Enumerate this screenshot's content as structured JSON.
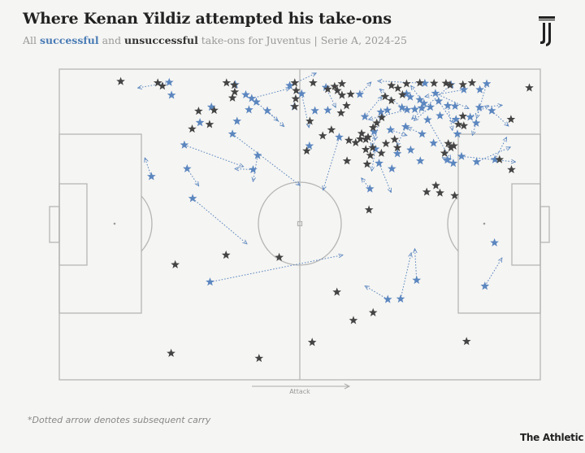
{
  "header": {
    "title": "Where Kenan Yildiz attempted his take-ons",
    "subtitle_prefix": "All ",
    "subtitle_successful": "successful",
    "subtitle_and": " and ",
    "subtitle_unsuccessful": "unsuccessful",
    "subtitle_suffix": " take-ons for Juventus | Serie A, 2024-25"
  },
  "footer": {
    "footnote": "*Dotted arrow denotes subsequent carry",
    "brand": "The Athletic"
  },
  "logo_icon": "juventus-logo-icon",
  "colors": {
    "successful": "#5b86bf",
    "unsuccessful": "#444444",
    "pitch_line": "#b5b5b5",
    "background": "#f5f5f3"
  },
  "chart_data": {
    "type": "scatter",
    "xlabel": "Attack",
    "xlim": [
      0,
      105
    ],
    "ylim": [
      0,
      68
    ],
    "series": [
      {
        "name": "successful",
        "points": [
          {
            "x": 24.0,
            "y": 2.9,
            "cx": 17.2,
            "cy": 4.1
          },
          {
            "x": 24.5,
            "y": 5.7
          },
          {
            "x": 38.4,
            "y": 3.4
          },
          {
            "x": 50.3,
            "y": 3.6,
            "cx": 56.0,
            "cy": 0.9
          },
          {
            "x": 52.9,
            "y": 5.4,
            "cx": 54.5,
            "cy": 12.7
          },
          {
            "x": 65.6,
            "y": 5.5,
            "cx": 68.0,
            "cy": 2.9
          },
          {
            "x": 79.8,
            "y": 3.1,
            "cx": 69.6,
            "cy": 2.6
          },
          {
            "x": 82.1,
            "y": 5.3,
            "cx": 89.3,
            "cy": 8.6
          },
          {
            "x": 85.5,
            "y": 3.4,
            "cx": 77.0,
            "cy": 10.9
          },
          {
            "x": 88.3,
            "y": 4.5,
            "cx": 79.9,
            "cy": 6.0
          },
          {
            "x": 91.8,
            "y": 4.5
          },
          {
            "x": 93.3,
            "y": 3.2,
            "cx": 91.1,
            "cy": 10.7
          },
          {
            "x": 75.8,
            "y": 5.4
          },
          {
            "x": 79.6,
            "y": 7.5,
            "cx": 76.8,
            "cy": 3.7
          },
          {
            "x": 71.6,
            "y": 9.0
          },
          {
            "x": 77.6,
            "y": 8.8
          },
          {
            "x": 58.6,
            "y": 9.0
          },
          {
            "x": 55.8,
            "y": 9.1
          },
          {
            "x": 51.3,
            "y": 8.2
          },
          {
            "x": 41.4,
            "y": 8.9
          },
          {
            "x": 42.0,
            "y": 6.4,
            "cx": 50.3,
            "cy": 4.2
          },
          {
            "x": 40.7,
            "y": 5.6
          },
          {
            "x": 45.4,
            "y": 9.1,
            "cx": 49.0,
            "cy": 12.5
          },
          {
            "x": 43.0,
            "y": 7.2,
            "cx": 47.7,
            "cy": 11.3
          },
          {
            "x": 33.2,
            "y": 8.3
          },
          {
            "x": 37.8,
            "y": 14.2,
            "cx": 52.5,
            "cy": 25.4
          },
          {
            "x": 43.3,
            "y": 18.9,
            "cx": 42.3,
            "cy": 24.5
          },
          {
            "x": 42.3,
            "y": 22.0,
            "cx": 38.4,
            "cy": 21.8
          },
          {
            "x": 38.8,
            "y": 11.4
          },
          {
            "x": 54.6,
            "y": 16.8
          },
          {
            "x": 58.2,
            "y": 4.0,
            "cx": 60.3,
            "cy": 8.3
          },
          {
            "x": 61.1,
            "y": 14.9,
            "cx": 57.6,
            "cy": 26.4
          },
          {
            "x": 68.7,
            "y": 13.7,
            "cx": 68.2,
            "cy": 16.9
          },
          {
            "x": 66.7,
            "y": 10.4,
            "cx": 70.4,
            "cy": 6.0
          },
          {
            "x": 69.0,
            "y": 17.5,
            "cx": 68.2,
            "cy": 22.2
          },
          {
            "x": 70.2,
            "y": 9.4,
            "cx": 68.9,
            "cy": 15.5
          },
          {
            "x": 72.3,
            "y": 13.3,
            "cx": 75.8,
            "cy": 14.5
          },
          {
            "x": 74.8,
            "y": 8.4,
            "cx": 70.0,
            "cy": 4.4
          },
          {
            "x": 75.9,
            "y": 8.9,
            "cx": 67.6,
            "cy": 11.0
          },
          {
            "x": 76.6,
            "y": 6.1
          },
          {
            "x": 78.7,
            "y": 6.7
          },
          {
            "x": 79.1,
            "y": 8.5
          },
          {
            "x": 81.0,
            "y": 8.3,
            "cx": 77.5,
            "cy": 11.2
          },
          {
            "x": 82.8,
            "y": 7.0,
            "cx": 86.0,
            "cy": 11.7
          },
          {
            "x": 84.8,
            "y": 8.0,
            "cx": 85.8,
            "cy": 13.3
          },
          {
            "x": 86.6,
            "y": 11.0
          },
          {
            "x": 89.7,
            "y": 10.5,
            "cx": 93.6,
            "cy": 8.0
          },
          {
            "x": 91.0,
            "y": 11.8,
            "cx": 90.2,
            "cy": 14.4
          },
          {
            "x": 94.4,
            "y": 9.1,
            "cx": 98.0,
            "cy": 12.4
          },
          {
            "x": 91.7,
            "y": 8.4,
            "cx": 96.6,
            "cy": 7.9
          },
          {
            "x": 86.4,
            "y": 8.1
          },
          {
            "x": 80.4,
            "y": 11.1,
            "cx": 85.4,
            "cy": 19.7
          },
          {
            "x": 83.1,
            "y": 10.2
          },
          {
            "x": 86.9,
            "y": 14.2
          },
          {
            "x": 81.7,
            "y": 16.2
          },
          {
            "x": 79.2,
            "y": 14.2,
            "cx": 76.1,
            "cy": 12.8
          },
          {
            "x": 75.6,
            "y": 12.6,
            "cx": 73.7,
            "cy": 16.8
          },
          {
            "x": 73.8,
            "y": 18.5
          },
          {
            "x": 69.8,
            "y": 20.6,
            "cx": 72.4,
            "cy": 26.9
          },
          {
            "x": 76.7,
            "y": 17.7
          },
          {
            "x": 78.8,
            "y": 20.1
          },
          {
            "x": 84.7,
            "y": 19.9
          },
          {
            "x": 86.0,
            "y": 20.6,
            "cx": 83.7,
            "cy": 19.4
          },
          {
            "x": 72.6,
            "y": 21.8
          },
          {
            "x": 95.1,
            "y": 19.8,
            "cx": 97.6,
            "cy": 15.0
          },
          {
            "x": 87.8,
            "y": 19.1,
            "cx": 99.5,
            "cy": 20.3
          },
          {
            "x": 91.1,
            "y": 20.3,
            "cx": 98.4,
            "cy": 17.1
          },
          {
            "x": 67.8,
            "y": 26.2,
            "cx": 66.0,
            "cy": 23.9
          },
          {
            "x": 20.1,
            "y": 23.5,
            "cx": 18.7,
            "cy": 19.5
          },
          {
            "x": 27.9,
            "y": 21.8,
            "cx": 30.4,
            "cy": 25.5
          },
          {
            "x": 27.3,
            "y": 16.6,
            "cx": 40.1,
            "cy": 21.3
          },
          {
            "x": 30.7,
            "y": 11.7
          },
          {
            "x": 29.1,
            "y": 28.3,
            "cx": 40.9,
            "cy": 38.2
          },
          {
            "x": 95.0,
            "y": 38.0
          },
          {
            "x": 92.9,
            "y": 47.5,
            "cx": 96.6,
            "cy": 41.4
          },
          {
            "x": 32.9,
            "y": 46.6,
            "cx": 61.8,
            "cy": 40.7
          },
          {
            "x": 78.0,
            "y": 46.2,
            "cx": 77.6,
            "cy": 39.4
          },
          {
            "x": 71.7,
            "y": 50.4,
            "cx": 66.8,
            "cy": 47.5
          },
          {
            "x": 74.5,
            "y": 50.3,
            "cx": 76.8,
            "cy": 40.3
          }
        ]
      },
      {
        "name": "unsuccessful",
        "points": [
          {
            "x": 13.4,
            "y": 2.7
          },
          {
            "x": 21.5,
            "y": 3.0
          },
          {
            "x": 22.5,
            "y": 3.7
          },
          {
            "x": 36.5,
            "y": 3.0
          },
          {
            "x": 38.3,
            "y": 5.0
          },
          {
            "x": 37.8,
            "y": 6.3
          },
          {
            "x": 33.8,
            "y": 9.0
          },
          {
            "x": 30.4,
            "y": 9.2
          },
          {
            "x": 29.0,
            "y": 13.1
          },
          {
            "x": 32.8,
            "y": 12.1
          },
          {
            "x": 38.2,
            "y": 3.5
          },
          {
            "x": 51.4,
            "y": 3.0
          },
          {
            "x": 51.7,
            "y": 4.7
          },
          {
            "x": 51.6,
            "y": 6.5
          },
          {
            "x": 51.4,
            "y": 8.2
          },
          {
            "x": 55.4,
            "y": 3.0
          },
          {
            "x": 58.6,
            "y": 4.4
          },
          {
            "x": 60.1,
            "y": 3.8
          },
          {
            "x": 60.7,
            "y": 4.7
          },
          {
            "x": 61.7,
            "y": 3.2
          },
          {
            "x": 72.5,
            "y": 3.6
          },
          {
            "x": 73.9,
            "y": 4.2
          },
          {
            "x": 75.8,
            "y": 3.2
          },
          {
            "x": 78.7,
            "y": 3.0
          },
          {
            "x": 81.8,
            "y": 3.1
          },
          {
            "x": 84.4,
            "y": 3.1
          },
          {
            "x": 85.3,
            "y": 3.5
          },
          {
            "x": 88.1,
            "y": 3.4
          },
          {
            "x": 90.1,
            "y": 3.0
          },
          {
            "x": 102.6,
            "y": 4.1
          },
          {
            "x": 71.1,
            "y": 6.0
          },
          {
            "x": 74.9,
            "y": 5.6
          },
          {
            "x": 72.5,
            "y": 6.9
          },
          {
            "x": 63.6,
            "y": 5.5
          },
          {
            "x": 61.7,
            "y": 5.7
          },
          {
            "x": 62.7,
            "y": 8.0
          },
          {
            "x": 61.5,
            "y": 9.6
          },
          {
            "x": 54.7,
            "y": 11.4
          },
          {
            "x": 59.4,
            "y": 13.3
          },
          {
            "x": 57.5,
            "y": 14.6
          },
          {
            "x": 54.0,
            "y": 17.9
          },
          {
            "x": 63.2,
            "y": 15.6
          },
          {
            "x": 66.0,
            "y": 14.1
          },
          {
            "x": 66.9,
            "y": 15.4
          },
          {
            "x": 70.4,
            "y": 10.6
          },
          {
            "x": 69.3,
            "y": 11.8
          },
          {
            "x": 68.5,
            "y": 12.8
          },
          {
            "x": 67.4,
            "y": 14.9
          },
          {
            "x": 65.7,
            "y": 15.3
          },
          {
            "x": 64.7,
            "y": 16.1
          },
          {
            "x": 71.3,
            "y": 16.3
          },
          {
            "x": 73.2,
            "y": 15.4
          },
          {
            "x": 73.8,
            "y": 17.2
          },
          {
            "x": 66.9,
            "y": 17.6
          },
          {
            "x": 68.4,
            "y": 17.2
          },
          {
            "x": 67.9,
            "y": 18.9
          },
          {
            "x": 62.8,
            "y": 20.1
          },
          {
            "x": 70.3,
            "y": 18.4
          },
          {
            "x": 67.2,
            "y": 20.8
          },
          {
            "x": 84.1,
            "y": 18.4
          },
          {
            "x": 84.9,
            "y": 16.3
          },
          {
            "x": 85.5,
            "y": 17.2
          },
          {
            "x": 86.1,
            "y": 16.8
          },
          {
            "x": 88.1,
            "y": 10.3
          },
          {
            "x": 87.1,
            "y": 12.1
          },
          {
            "x": 88.3,
            "y": 12.4
          },
          {
            "x": 98.6,
            "y": 11.0
          },
          {
            "x": 98.7,
            "y": 22.0
          },
          {
            "x": 96.1,
            "y": 19.8
          },
          {
            "x": 83.1,
            "y": 27.1
          },
          {
            "x": 82.2,
            "y": 25.5
          },
          {
            "x": 86.3,
            "y": 27.7
          },
          {
            "x": 80.2,
            "y": 26.9
          },
          {
            "x": 67.6,
            "y": 30.8
          },
          {
            "x": 36.4,
            "y": 40.7
          },
          {
            "x": 48.0,
            "y": 41.2
          },
          {
            "x": 60.6,
            "y": 48.8
          },
          {
            "x": 68.5,
            "y": 53.3
          },
          {
            "x": 64.2,
            "y": 55.0
          },
          {
            "x": 88.9,
            "y": 59.6
          },
          {
            "x": 55.2,
            "y": 59.8
          },
          {
            "x": 43.6,
            "y": 63.3
          },
          {
            "x": 24.4,
            "y": 62.2
          },
          {
            "x": 25.3,
            "y": 42.8
          }
        ]
      }
    ]
  }
}
